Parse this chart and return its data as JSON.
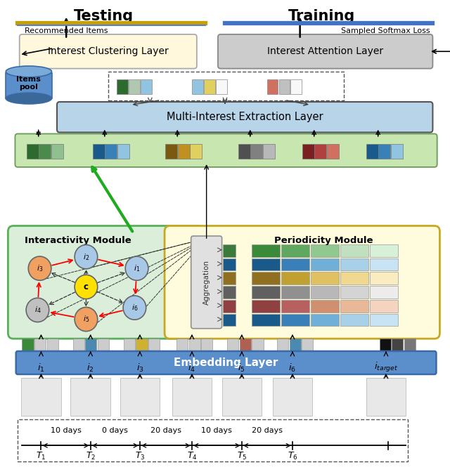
{
  "figsize": [
    6.4,
    6.72
  ],
  "dpi": 100,
  "bg_color": "#ffffff",
  "testing_label": "Testing",
  "training_label": "Training",
  "gold_color": "#C8A000",
  "blue_color": "#4472C4",
  "recommended_label": "Recommended Items",
  "softmax_label": "Sampled Softmax Loss",
  "interest_clustering_label": "Interest Clustering Layer",
  "interest_attention_label": "Interest Attention Layer",
  "multi_interest_label": "Multi-Interest Extraction Layer",
  "embedding_label": "Embedding Layer",
  "interactivity_label": "Interactivity Module",
  "periodicity_label": "Periodicity Module",
  "aggregation_label": "Aggregation",
  "items_pool_label": "Items\npool",
  "embed_colors_groups": [
    [
      "#2D6A2D",
      "#4A8A4A",
      "#90C090"
    ],
    [
      "#1A5A8A",
      "#3A80B8",
      "#90C4E0"
    ],
    [
      "#7A5A10",
      "#C09020",
      "#E0D060"
    ],
    [
      "#505050",
      "#808080",
      "#B8B8B8"
    ],
    [
      "#7A2020",
      "#B04040",
      "#D07060"
    ],
    [
      "#1A5A8A",
      "#3A80B8",
      "#90C4E0"
    ]
  ],
  "interest_vector_groups": [
    [
      "#2D6A2D",
      "#B0C8B0",
      "#90C4E0"
    ],
    [
      "#90C4E0",
      "#E0D060",
      "#F8F8F8"
    ],
    [
      "#D07060",
      "#C0C0C0",
      "#F8F8F8"
    ]
  ],
  "period_small_colors": [
    "#3A7A3A",
    "#1A5A8A",
    "#907020",
    "#606060",
    "#904040",
    "#1A5A8A"
  ],
  "period_grid_colors": [
    [
      "#3A8A3A",
      "#60A860",
      "#90C890",
      "#C0E0C0",
      "#D8F0D8"
    ],
    [
      "#1A5A8A",
      "#3A80B8",
      "#70B0D8",
      "#A8D0E8",
      "#C8E4F4"
    ],
    [
      "#907020",
      "#C0A030",
      "#E0C060",
      "#F0D890",
      "#F8ECC0"
    ],
    [
      "#606060",
      "#909090",
      "#B8B8B8",
      "#D4D4D4",
      "#ECECEC"
    ],
    [
      "#904040",
      "#B86060",
      "#D09070",
      "#E8B898",
      "#F4D4C0"
    ],
    [
      "#1A5A8A",
      "#3A80B8",
      "#70B0D8",
      "#A8D0E8",
      "#C8E4F4"
    ]
  ],
  "node_colors": {
    "i1": "#A8C8E8",
    "i2": "#A8C8E8",
    "i3": "#F0A060",
    "i4": "#C0C0C0",
    "i5": "#F0A060",
    "i6": "#A8C8E8",
    "c": "#FFE000"
  },
  "timeline_intervals": [
    "10 days",
    "0 days",
    "20 days",
    "10 days",
    "20 days"
  ],
  "timeline_labels": [
    "T_1",
    "T_2",
    "T_3",
    "T_4",
    "T_5",
    "T_6"
  ],
  "item_labels_tex": [
    "i_1",
    "i_2",
    "i_3",
    "i_4",
    "i_5",
    "i_6",
    "i_{target}"
  ]
}
